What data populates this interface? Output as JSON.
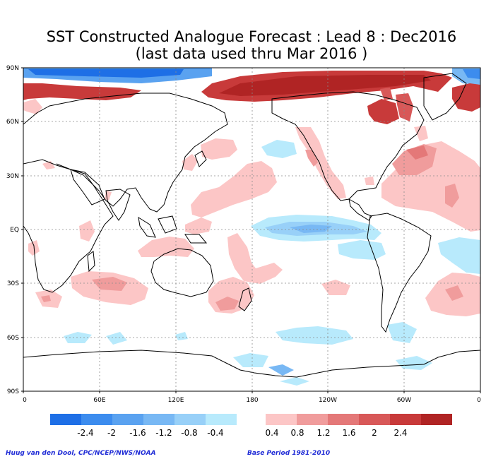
{
  "title": "SST Constructed Analogue Forecast : Lead 8 : Dec2016",
  "subtitle": "(last data used thru Mar 2016 )",
  "lat_labels": [
    "90N",
    "60N",
    "30N",
    "EQ",
    "30S",
    "60S",
    "90S"
  ],
  "lon_labels": [
    "0",
    "60E",
    "120E",
    "180",
    "120W",
    "60W",
    "0"
  ],
  "legend": {
    "neg_labels": [
      "-2.4",
      "-2",
      "-1.6",
      "-1.2",
      "-0.8",
      "-0.4"
    ],
    "pos_labels": [
      "0.4",
      "0.8",
      "1.2",
      "1.6",
      "2",
      "2.4"
    ],
    "neg_colors": [
      "#1e6fe6",
      "#3c8cee",
      "#5aa2f0",
      "#78b8f4",
      "#98d0f8",
      "#b8eafc"
    ],
    "pos_colors": [
      "#fcc6c6",
      "#f09c9c",
      "#e47878",
      "#d85858",
      "#c83a3a",
      "#b02424"
    ]
  },
  "credit_left": "Huug van den Dool, CPC/NCEP/NWS/NOAA",
  "credit_right": "Base Period 1981-2010",
  "colors": {
    "land_outline": "#000000",
    "grid": "#8a8a8a",
    "credit_text": "#1f2bd6"
  }
}
